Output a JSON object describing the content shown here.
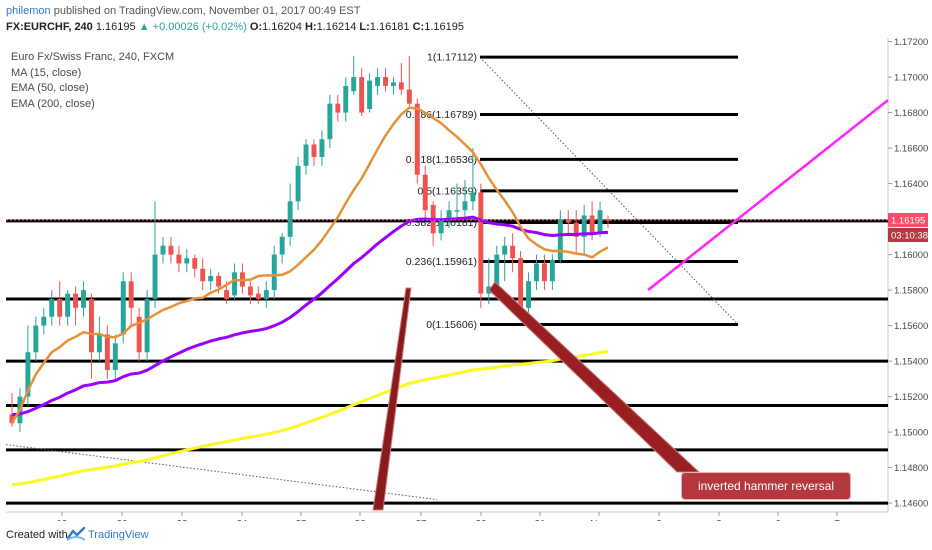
{
  "header": {
    "author": "philemon",
    "published": "published on TradingView.com, November 01, 2017 00:49 EST",
    "symbol": "FX:EURCHF, 240",
    "last": "1.16195",
    "change": "+0.00026 (+0.02%)",
    "ohlc_o_label": "O:",
    "ohlc_o": "1.16204",
    "ohlc_h_label": "H:",
    "ohlc_h": "1.16214",
    "ohlc_l_label": "L:",
    "ohlc_l": "1.16181",
    "ohlc_c_label": "C:",
    "ohlc_c": "1.16195"
  },
  "legend": {
    "instrument": "Euro Fx/Swiss Franc, 240, FXCM",
    "ma": "MA (15, close)",
    "ema50": "EMA (50, close)",
    "ema200": "EMA (200, close)"
  },
  "footer": {
    "created": "Created with",
    "brand": "TradingView"
  },
  "annotation": {
    "text": "inverted hammer reversal"
  },
  "colors": {
    "up": "#26a69a",
    "down": "#ef5350",
    "ma15": "#e69138",
    "ema50": "#9b00ff",
    "ema200": "#f9f923",
    "trend": "#ff22ff",
    "price_tag": "#ff4a68",
    "time_tag": "#b5383f"
  },
  "chart_data": {
    "type": "candlestick",
    "ylim": [
      1.1455,
      1.1722
    ],
    "y_ticks": [
      "1.17200",
      "1.17000",
      "1.16800",
      "1.16600",
      "1.16400",
      "1.16200",
      "1.16000",
      "1.15800",
      "1.15600",
      "1.15400",
      "1.15200",
      "1.15000",
      "1.14800",
      "1.14600"
    ],
    "y_tick_values": [
      1.172,
      1.17,
      1.168,
      1.166,
      1.164,
      1.162,
      1.16,
      1.158,
      1.156,
      1.154,
      1.152,
      1.15,
      1.148,
      1.146
    ],
    "x_ticks": [
      "19",
      "20",
      "23",
      "24",
      "25",
      "26",
      "27",
      "30",
      "31",
      "Nov",
      "2",
      "3",
      "6",
      "7"
    ],
    "last_price_label": "1.16195",
    "last_price": 1.16195,
    "time_label": "03:10:38",
    "fibonacci": [
      {
        "label": "1(1.17112)",
        "value": 1.17112
      },
      {
        "label": "0.786(1.16789)",
        "value": 1.16789
      },
      {
        "label": "0.618(1.16536)",
        "value": 1.16536
      },
      {
        "label": "0.5(1.16359)",
        "value": 1.16359
      },
      {
        "label": "0.382(1.16181)",
        "value": 1.16181
      },
      {
        "label": "0.236(1.15961)",
        "value": 1.15961
      },
      {
        "label": "0(1.15606)",
        "value": 1.15606
      }
    ],
    "horizontal_levels": [
      1.1619,
      1.1575,
      1.154,
      1.1515,
      1.149,
      1.146
    ],
    "candles": [
      [
        1.151,
        1.1505,
        1.1522,
        1.1503
      ],
      [
        1.1505,
        1.152,
        1.1525,
        1.15
      ],
      [
        1.152,
        1.1545,
        1.156,
        1.1515
      ],
      [
        1.1545,
        1.156,
        1.1565,
        1.154
      ],
      [
        1.156,
        1.1565,
        1.157,
        1.1555
      ],
      [
        1.1565,
        1.1575,
        1.158,
        1.156
      ],
      [
        1.1575,
        1.1565,
        1.1585,
        1.156
      ],
      [
        1.1565,
        1.1578,
        1.158,
        1.156
      ],
      [
        1.1578,
        1.157,
        1.1582,
        1.156
      ],
      [
        1.157,
        1.158,
        1.1585,
        1.1565
      ],
      [
        1.1575,
        1.1545,
        1.1578,
        1.153
      ],
      [
        1.1545,
        1.1555,
        1.1565,
        1.154
      ],
      [
        1.1555,
        1.1535,
        1.156,
        1.153
      ],
      [
        1.1535,
        1.155,
        1.1555,
        1.153
      ],
      [
        1.1555,
        1.1585,
        1.159,
        1.155
      ],
      [
        1.1585,
        1.157,
        1.159,
        1.156
      ],
      [
        1.1565,
        1.1545,
        1.157,
        1.154
      ],
      [
        1.1545,
        1.1575,
        1.158,
        1.154
      ],
      [
        1.1575,
        1.16,
        1.163,
        1.157
      ],
      [
        1.16,
        1.1605,
        1.161,
        1.1595
      ],
      [
        1.1605,
        1.16,
        1.161,
        1.1595
      ],
      [
        1.16,
        1.1595,
        1.1605,
        1.159
      ],
      [
        1.1595,
        1.1598,
        1.1603,
        1.159
      ],
      [
        1.1598,
        1.1592,
        1.16,
        1.1587
      ],
      [
        1.1592,
        1.1585,
        1.1598,
        1.158
      ],
      [
        1.1585,
        1.1588,
        1.1592,
        1.158
      ],
      [
        1.1588,
        1.1582,
        1.159,
        1.1578
      ],
      [
        1.158,
        1.1575,
        1.1585,
        1.1572
      ],
      [
        1.1577,
        1.159,
        1.1595,
        1.1575
      ],
      [
        1.159,
        1.1582,
        1.1595,
        1.1578
      ],
      [
        1.1582,
        1.1577,
        1.1585,
        1.1572
      ],
      [
        1.1578,
        1.1575,
        1.1582,
        1.1572
      ],
      [
        1.1575,
        1.158,
        1.1585,
        1.157
      ],
      [
        1.158,
        1.16,
        1.1605,
        1.1575
      ],
      [
        1.16,
        1.161,
        1.1612,
        1.1595
      ],
      [
        1.161,
        1.163,
        1.164,
        1.1605
      ],
      [
        1.163,
        1.165,
        1.1655,
        1.1625
      ],
      [
        1.165,
        1.1662,
        1.1665,
        1.1645
      ],
      [
        1.1662,
        1.1655,
        1.1665,
        1.165
      ],
      [
        1.1655,
        1.1665,
        1.167,
        1.165
      ],
      [
        1.1665,
        1.1685,
        1.169,
        1.166
      ],
      [
        1.1685,
        1.168,
        1.169,
        1.1675
      ],
      [
        1.168,
        1.1695,
        1.17,
        1.1675
      ],
      [
        1.1692,
        1.17,
        1.1712,
        1.169
      ],
      [
        1.17,
        1.168,
        1.1705,
        1.1678
      ],
      [
        1.1682,
        1.1698,
        1.1702,
        1.168
      ],
      [
        1.1695,
        1.17,
        1.1705,
        1.169
      ],
      [
        1.17,
        1.1695,
        1.1705,
        1.1692
      ],
      [
        1.1695,
        1.1697,
        1.17,
        1.169
      ],
      [
        1.1697,
        1.1693,
        1.1708,
        1.169
      ],
      [
        1.1693,
        1.1685,
        1.1712,
        1.1682
      ],
      [
        1.1685,
        1.1645,
        1.1688,
        1.164
      ],
      [
        1.1645,
        1.1625,
        1.165,
        1.162
      ],
      [
        1.1628,
        1.1612,
        1.163,
        1.1605
      ],
      [
        1.1612,
        1.162,
        1.1625,
        1.1608
      ],
      [
        1.162,
        1.1625,
        1.163,
        1.1615
      ],
      [
        1.1625,
        1.1625,
        1.164,
        1.162
      ],
      [
        1.1625,
        1.163,
        1.1642,
        1.162
      ],
      [
        1.163,
        1.1635,
        1.166,
        1.1625
      ],
      [
        1.1635,
        1.1578,
        1.164,
        1.157
      ],
      [
        1.1578,
        1.1582,
        1.1598,
        1.1572
      ],
      [
        1.1582,
        1.16,
        1.1605,
        1.1578
      ],
      [
        1.16,
        1.1605,
        1.161,
        1.1585
      ],
      [
        1.1605,
        1.1598,
        1.1612,
        1.159
      ],
      [
        1.1598,
        1.157,
        1.1602,
        1.1565
      ],
      [
        1.157,
        1.1585,
        1.159,
        1.1565
      ],
      [
        1.1585,
        1.1595,
        1.16,
        1.158
      ],
      [
        1.1595,
        1.1585,
        1.16,
        1.158
      ],
      [
        1.1585,
        1.1597,
        1.16,
        1.158
      ],
      [
        1.1597,
        1.162,
        1.1625,
        1.1595
      ],
      [
        1.162,
        1.1618,
        1.1625,
        1.1612
      ],
      [
        1.1618,
        1.161,
        1.1625,
        1.16
      ],
      [
        1.161,
        1.1622,
        1.1628,
        1.16
      ],
      [
        1.1622,
        1.1612,
        1.163,
        1.1608
      ],
      [
        1.1612,
        1.1625,
        1.163,
        1.161
      ],
      [
        1.162,
        1.1619,
        1.1622,
        1.1615
      ]
    ]
  }
}
